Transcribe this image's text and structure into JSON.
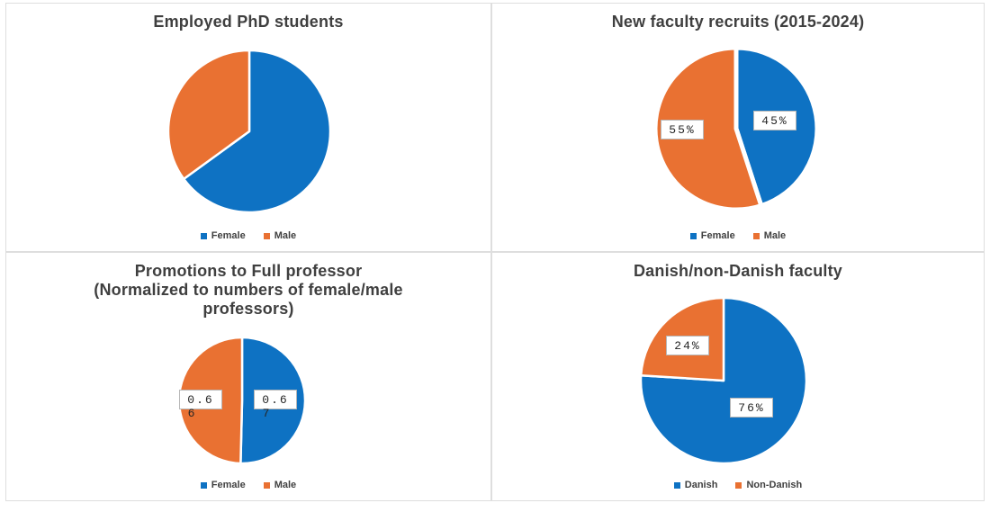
{
  "page": {
    "background": "#FFFFFF",
    "panel_border": "#DEDEDE",
    "title_color": "#3F3F3F",
    "legend_text_color": "#404040"
  },
  "chart_data": [
    {
      "type": "pie",
      "title": "Employed PhD students",
      "labels": [
        "Female",
        "Male"
      ],
      "values": [
        65,
        35
      ],
      "values_estimated": true,
      "colors": [
        "#0E72C3",
        "#E97132"
      ],
      "data_labels": [
        [],
        []
      ],
      "legend_position": "bottom"
    },
    {
      "type": "pie",
      "title": "New faculty recruits (2015-2024)",
      "labels": [
        "Female",
        "Male"
      ],
      "values": [
        45,
        55
      ],
      "colors": [
        "#0E72C3",
        "#E97132"
      ],
      "data_labels": [
        [
          "45%"
        ],
        [
          "55%"
        ]
      ],
      "legend_position": "bottom"
    },
    {
      "type": "pie",
      "title": "Promotions to Full professor\n(Normalized to numbers of female/male\nprofessors)",
      "labels": [
        "Female",
        "Male"
      ],
      "values": [
        0.67,
        0.66
      ],
      "colors": [
        "#0E72C3",
        "#E97132"
      ],
      "data_labels": [
        [
          "0.6",
          "7"
        ],
        [
          "0.6",
          "6"
        ]
      ],
      "legend_position": "bottom"
    },
    {
      "type": "pie",
      "title": "Danish/non-Danish faculty",
      "labels": [
        "Danish",
        "Non-Danish"
      ],
      "values": [
        76,
        24
      ],
      "colors": [
        "#0E72C3",
        "#E97132"
      ],
      "data_labels": [
        [
          "76%"
        ],
        [
          "24%"
        ]
      ],
      "legend_position": "bottom"
    }
  ]
}
